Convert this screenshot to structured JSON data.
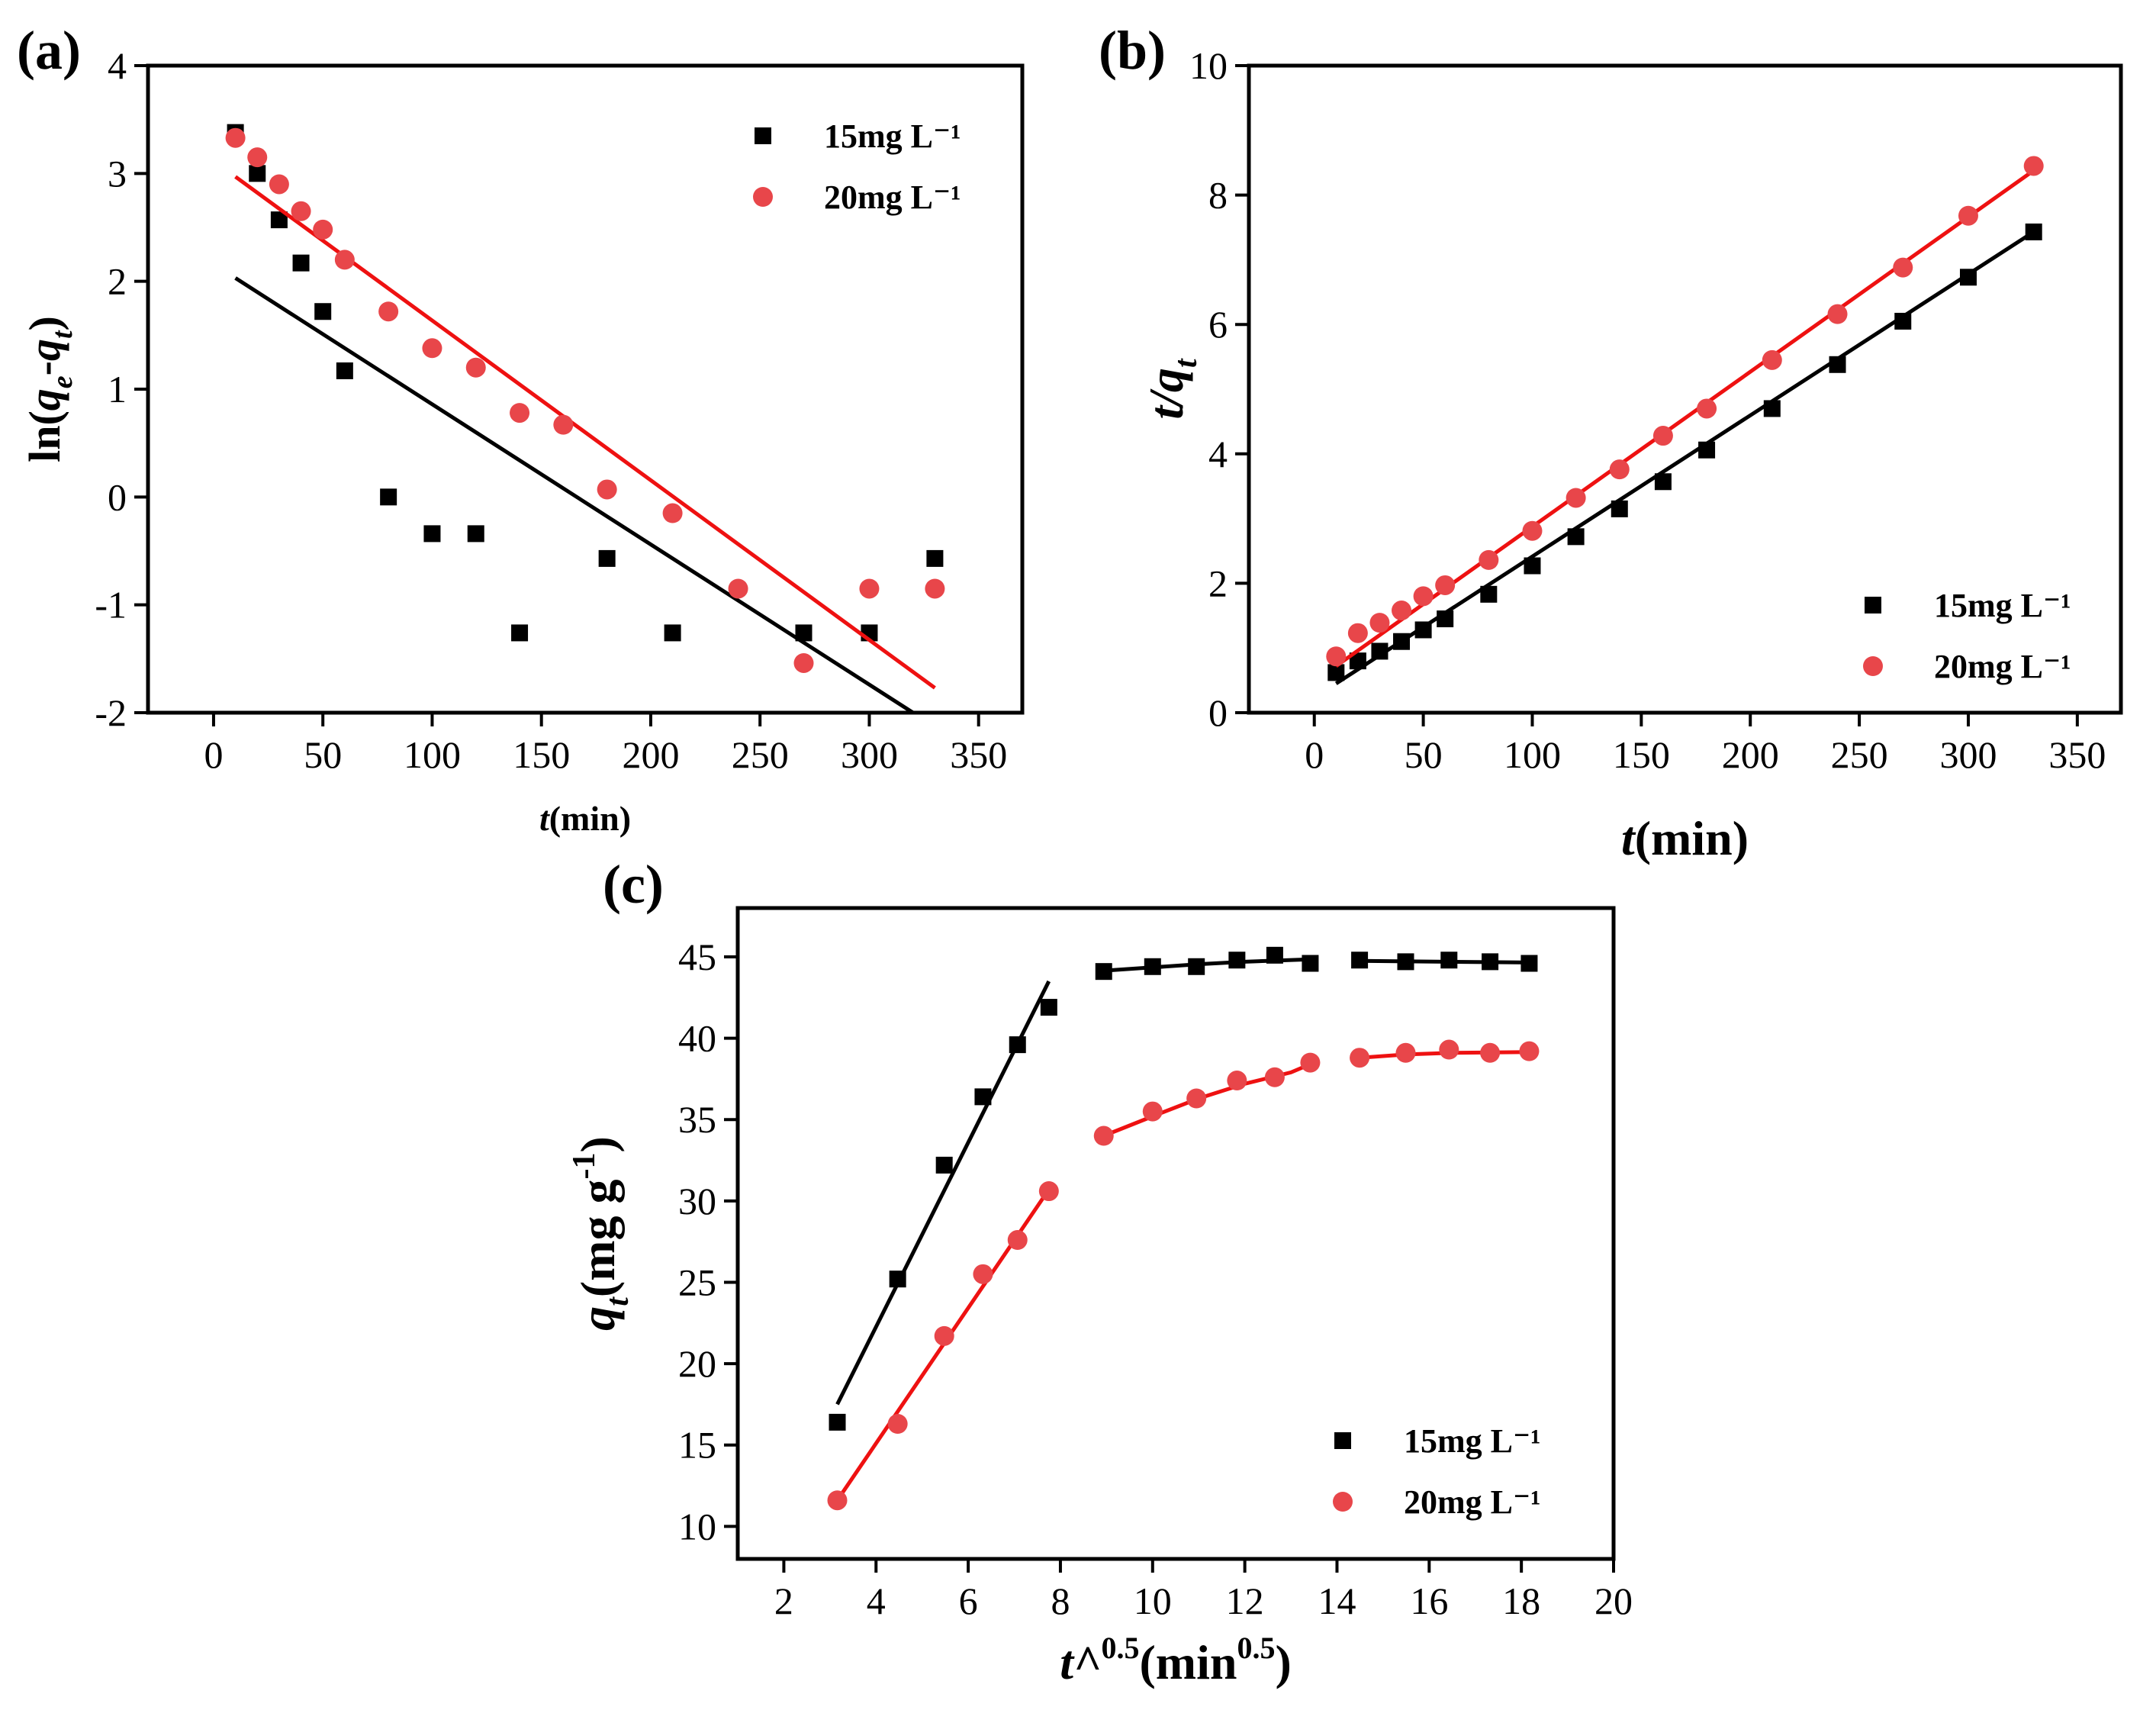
{
  "colors": {
    "black_series": "#000000",
    "red_series": "#e8464a",
    "red_line": "#ee1111"
  },
  "chart_data": [
    {
      "id": "a",
      "type": "scatter",
      "panel_label": "(a)",
      "xlabel_italic": "t",
      "xlabel_rest": "(min)",
      "ylabel": "ln(qe-qt)",
      "xlim": [
        -30,
        370
      ],
      "ylim": [
        -2,
        4
      ],
      "xticks": [
        0,
        50,
        100,
        150,
        200,
        250,
        300,
        350
      ],
      "yticks": [
        -2,
        -1,
        0,
        1,
        2,
        3,
        4
      ],
      "legend_position": "top-right",
      "series": [
        {
          "name": "15mg L⁻¹",
          "marker": "square",
          "color_key": "black_series",
          "points": [
            [
              10,
              3.38
            ],
            [
              20,
              3.0
            ],
            [
              30,
              2.57
            ],
            [
              40,
              2.17
            ],
            [
              50,
              1.72
            ],
            [
              60,
              1.17
            ],
            [
              80,
              0.0
            ],
            [
              100,
              -0.34
            ],
            [
              120,
              -0.34
            ],
            [
              140,
              -1.26
            ],
            [
              180,
              -0.57
            ],
            [
              210,
              -1.26
            ],
            [
              270,
              -1.26
            ],
            [
              300,
              -1.26
            ],
            [
              330,
              -0.57
            ]
          ],
          "fit": [
            [
              10,
              2.03
            ],
            [
              320,
              -2.0
            ]
          ]
        },
        {
          "name": "20mg L⁻¹",
          "marker": "circle",
          "color_key": "red_series",
          "points": [
            [
              10,
              3.33
            ],
            [
              20,
              3.15
            ],
            [
              30,
              2.9
            ],
            [
              40,
              2.65
            ],
            [
              50,
              2.48
            ],
            [
              60,
              2.2
            ],
            [
              80,
              1.72
            ],
            [
              100,
              1.38
            ],
            [
              120,
              1.2
            ],
            [
              140,
              0.78
            ],
            [
              160,
              0.67
            ],
            [
              180,
              0.07
            ],
            [
              210,
              -0.15
            ],
            [
              240,
              -0.85
            ],
            [
              270,
              -1.54
            ],
            [
              300,
              -0.85
            ],
            [
              330,
              -0.85
            ]
          ],
          "fit": [
            [
              10,
              2.97
            ],
            [
              330,
              -1.77
            ]
          ]
        }
      ]
    },
    {
      "id": "b",
      "type": "scatter",
      "panel_label": "(b)",
      "xlabel_italic": "t",
      "xlabel_rest": "(min)",
      "ylabel": "t/qt",
      "xlim": [
        -30,
        370
      ],
      "ylim": [
        0,
        10
      ],
      "xticks": [
        0,
        50,
        100,
        150,
        200,
        250,
        300,
        350
      ],
      "yticks": [
        0,
        2,
        4,
        6,
        8,
        10
      ],
      "legend_position": "bottom-right",
      "series": [
        {
          "name": "15mg L⁻¹",
          "marker": "square",
          "color_key": "black_series",
          "points": [
            [
              10,
              0.62
            ],
            [
              20,
              0.8
            ],
            [
              30,
              0.95
            ],
            [
              40,
              1.1
            ],
            [
              50,
              1.28
            ],
            [
              60,
              1.45
            ],
            [
              80,
              1.83
            ],
            [
              100,
              2.27
            ],
            [
              120,
              2.72
            ],
            [
              140,
              3.15
            ],
            [
              160,
              3.57
            ],
            [
              180,
              4.06
            ],
            [
              210,
              4.7
            ],
            [
              240,
              5.38
            ],
            [
              270,
              6.05
            ],
            [
              300,
              6.73
            ],
            [
              330,
              7.43
            ]
          ],
          "fit": [
            [
              10,
              0.45
            ],
            [
              330,
              7.43
            ]
          ]
        },
        {
          "name": "20mg L⁻¹",
          "marker": "circle",
          "color_key": "red_series",
          "points": [
            [
              10,
              0.87
            ],
            [
              20,
              1.23
            ],
            [
              30,
              1.39
            ],
            [
              40,
              1.58
            ],
            [
              50,
              1.8
            ],
            [
              60,
              1.97
            ],
            [
              80,
              2.36
            ],
            [
              100,
              2.81
            ],
            [
              120,
              3.32
            ],
            [
              140,
              3.76
            ],
            [
              160,
              4.28
            ],
            [
              180,
              4.7
            ],
            [
              210,
              5.45
            ],
            [
              240,
              6.16
            ],
            [
              270,
              6.88
            ],
            [
              300,
              7.68
            ],
            [
              330,
              8.45
            ]
          ],
          "fit": [
            [
              10,
              0.72
            ],
            [
              330,
              8.38
            ]
          ]
        }
      ]
    },
    {
      "id": "c",
      "type": "scatter",
      "panel_label": "(c)",
      "xlabel_main": "t^",
      "xlabel_sup1": "0.5",
      "xlabel_mid": "(min",
      "xlabel_sup2": "0.5",
      "xlabel_end": ")",
      "ylabel": "qt(mg g-1)",
      "xlim": [
        1,
        20
      ],
      "ylim": [
        8,
        48
      ],
      "xticks": [
        2,
        4,
        6,
        8,
        10,
        12,
        14,
        16,
        18,
        20
      ],
      "yticks": [
        10,
        15,
        20,
        25,
        30,
        35,
        40,
        45
      ],
      "legend_position": "bottom-right",
      "series": [
        {
          "name": "15mg L⁻¹",
          "marker": "square",
          "color_key": "black_series",
          "points": [
            [
              3.16,
              16.4
            ],
            [
              4.47,
              25.2
            ],
            [
              5.48,
              32.2
            ],
            [
              6.32,
              36.4
            ],
            [
              7.07,
              39.6
            ],
            [
              7.75,
              41.9
            ],
            [
              8.94,
              44.1
            ],
            [
              10.0,
              44.4
            ],
            [
              10.95,
              44.4
            ],
            [
              11.83,
              44.8
            ],
            [
              12.65,
              45.1
            ],
            [
              13.42,
              44.6
            ],
            [
              14.49,
              44.8
            ],
            [
              15.49,
              44.7
            ],
            [
              16.43,
              44.8
            ],
            [
              17.32,
              44.7
            ],
            [
              18.17,
              44.6
            ]
          ],
          "fits": [
            [
              [
                3.16,
                17.5
              ],
              [
                7.75,
                43.5
              ]
            ],
            [
              [
                8.94,
                44.15
              ],
              [
                10.0,
                44.35
              ],
              [
                11.0,
                44.55
              ],
              [
                12.0,
                44.7
              ],
              [
                13.42,
                44.85
              ]
            ],
            [
              [
                14.49,
                44.75
              ],
              [
                18.17,
                44.65
              ]
            ]
          ]
        },
        {
          "name": "20mg L⁻¹",
          "marker": "circle",
          "color_key": "red_series",
          "points": [
            [
              3.16,
              11.6
            ],
            [
              4.47,
              16.3
            ],
            [
              5.48,
              21.7
            ],
            [
              6.32,
              25.5
            ],
            [
              7.07,
              27.6
            ],
            [
              7.75,
              30.6
            ],
            [
              8.94,
              34.0
            ],
            [
              10.0,
              35.5
            ],
            [
              10.95,
              36.3
            ],
            [
              11.83,
              37.4
            ],
            [
              12.65,
              37.6
            ],
            [
              13.42,
              38.5
            ],
            [
              14.49,
              38.8
            ],
            [
              15.49,
              39.1
            ],
            [
              16.43,
              39.3
            ],
            [
              17.32,
              39.1
            ],
            [
              18.17,
              39.2
            ]
          ],
          "fits": [
            [
              [
                3.16,
                11.6
              ],
              [
                7.75,
                30.7
              ]
            ],
            [
              [
                8.94,
                34.0
              ],
              [
                10.0,
                35.2
              ],
              [
                11.0,
                36.3
              ],
              [
                12.0,
                37.2
              ],
              [
                13.0,
                37.9
              ],
              [
                13.42,
                38.4
              ]
            ],
            [
              [
                14.49,
                38.8
              ],
              [
                15.5,
                39.0
              ],
              [
                16.5,
                39.1
              ],
              [
                18.17,
                39.15
              ]
            ]
          ]
        }
      ]
    }
  ]
}
